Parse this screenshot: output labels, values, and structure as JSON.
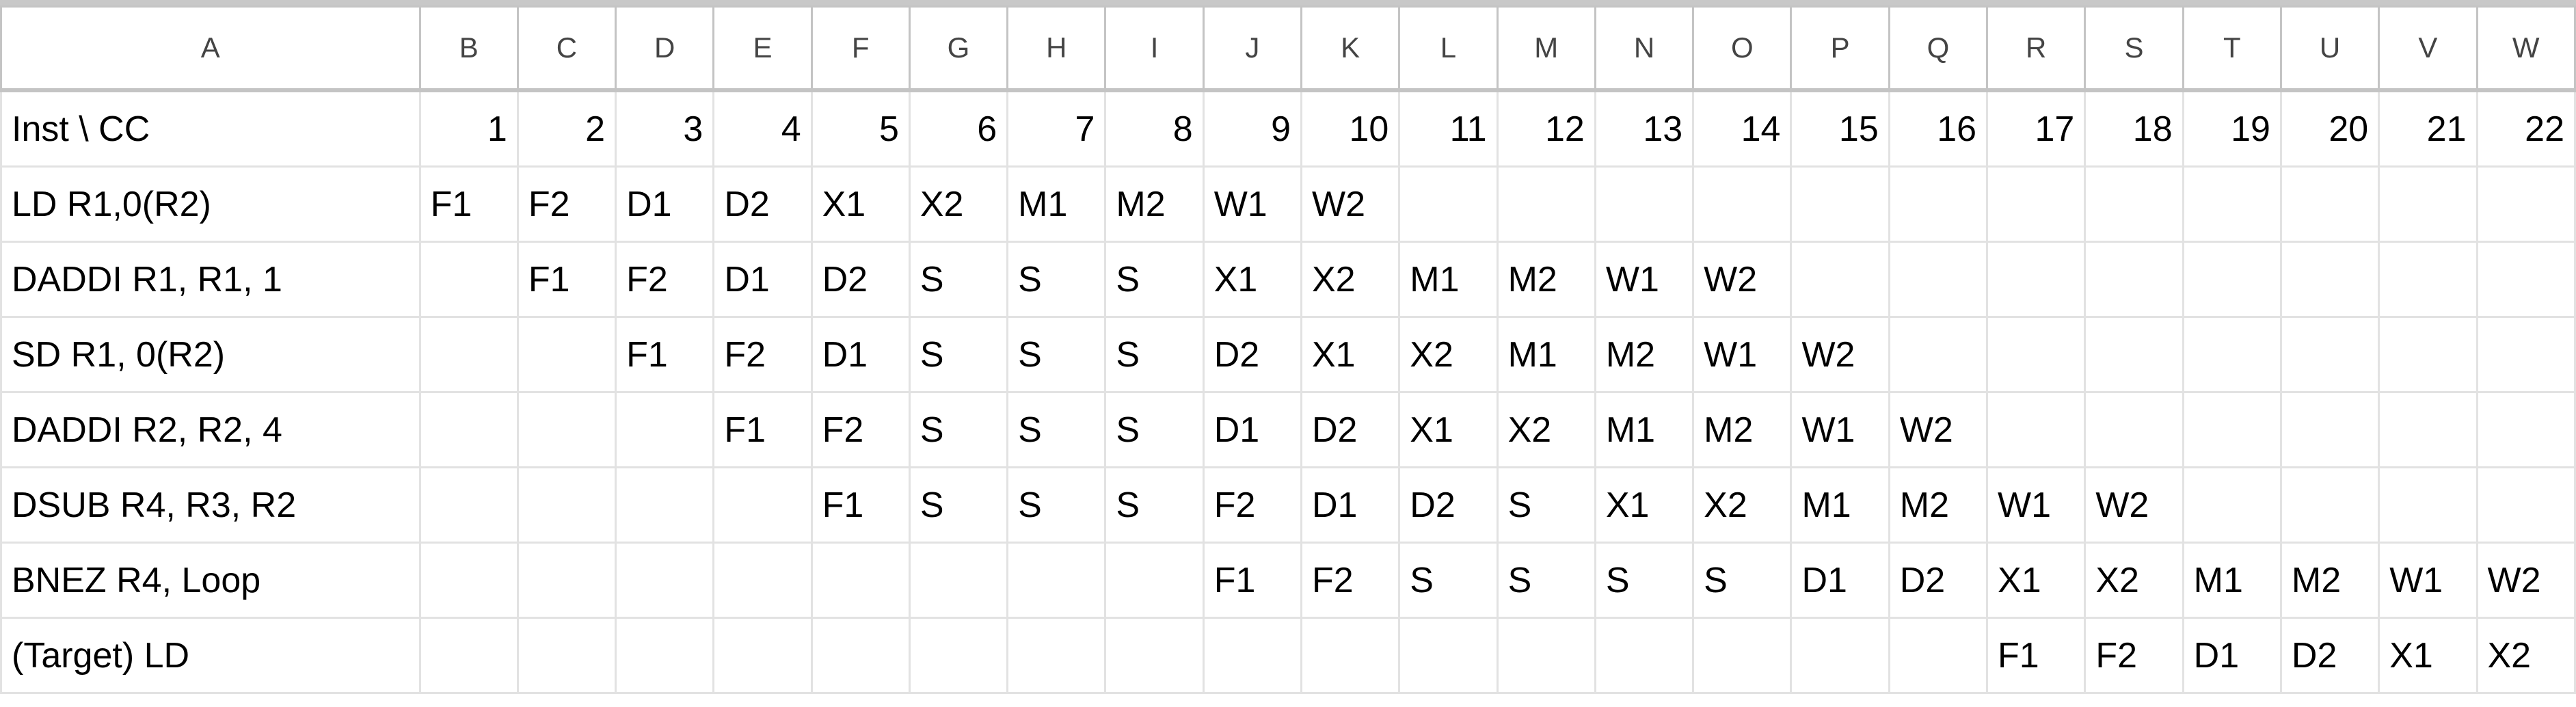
{
  "columns": [
    "A",
    "B",
    "C",
    "D",
    "E",
    "F",
    "G",
    "H",
    "I",
    "J",
    "K",
    "L",
    "M",
    "N",
    "O",
    "P",
    "Q",
    "R",
    "S",
    "T",
    "U",
    "V",
    "W"
  ],
  "header_row": {
    "label": "Inst \\ CC",
    "cycles": [
      "1",
      "2",
      "3",
      "4",
      "5",
      "6",
      "7",
      "8",
      "9",
      "10",
      "11",
      "12",
      "13",
      "14",
      "15",
      "16",
      "17",
      "18",
      "19",
      "20",
      "21",
      "22"
    ]
  },
  "rows": [
    {
      "label": "LD R1,0(R2)",
      "cells": [
        "F1",
        "F2",
        "D1",
        "D2",
        "X1",
        "X2",
        "M1",
        "M2",
        "W1",
        "W2",
        "",
        "",
        "",
        "",
        "",
        "",
        "",
        "",
        "",
        "",
        "",
        ""
      ]
    },
    {
      "label": "DADDI R1, R1, 1",
      "cells": [
        "",
        "F1",
        "F2",
        "D1",
        "D2",
        "S",
        "S",
        "S",
        "X1",
        "X2",
        "M1",
        "M2",
        "W1",
        "W2",
        "",
        "",
        "",
        "",
        "",
        "",
        "",
        ""
      ]
    },
    {
      "label": "SD R1, 0(R2)",
      "cells": [
        "",
        "",
        "F1",
        "F2",
        "D1",
        "S",
        "S",
        "S",
        "D2",
        "X1",
        "X2",
        "M1",
        "M2",
        "W1",
        "W2",
        "",
        "",
        "",
        "",
        "",
        "",
        ""
      ]
    },
    {
      "label": "DADDI R2, R2, 4",
      "cells": [
        "",
        "",
        "",
        "F1",
        "F2",
        "S",
        "S",
        "S",
        "D1",
        "D2",
        "X1",
        "X2",
        "M1",
        "M2",
        "W1",
        "W2",
        "",
        "",
        "",
        "",
        "",
        ""
      ]
    },
    {
      "label": "DSUB R4, R3, R2",
      "cells": [
        "",
        "",
        "",
        "",
        "F1",
        "S",
        "S",
        "S",
        "F2",
        "D1",
        "D2",
        "S",
        "X1",
        "X2",
        "M1",
        "M2",
        "W1",
        "W2",
        "",
        "",
        "",
        ""
      ]
    },
    {
      "label": "BNEZ R4, Loop",
      "cells": [
        "",
        "",
        "",
        "",
        "",
        "",
        "",
        "",
        "F1",
        "F2",
        "S",
        "S",
        "S",
        "S",
        "D1",
        "D2",
        "X1",
        "X2",
        "M1",
        "M2",
        "W1",
        "W2"
      ]
    },
    {
      "label": "(Target) LD",
      "cells": [
        "",
        "",
        "",
        "",
        "",
        "",
        "",
        "",
        "",
        "",
        "",
        "",
        "",
        "",
        "",
        "",
        "F1",
        "F2",
        "D1",
        "D2",
        "X1",
        "X2"
      ]
    }
  ]
}
